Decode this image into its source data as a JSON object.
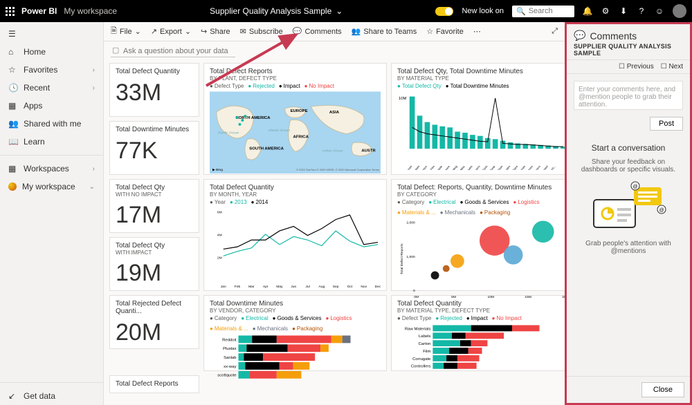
{
  "topbar": {
    "brand": "Power BI",
    "workspace": "My workspace",
    "title": "Supplier Quality Analysis Sample",
    "new_look_label": "New look on",
    "search_placeholder": "Search"
  },
  "leftrail": {
    "items": [
      {
        "icon": "home",
        "label": "Home"
      },
      {
        "icon": "star",
        "label": "Favorites",
        "chev": true
      },
      {
        "icon": "clock",
        "label": "Recent",
        "chev": true
      },
      {
        "icon": "apps",
        "label": "Apps"
      },
      {
        "icon": "share",
        "label": "Shared with me"
      },
      {
        "icon": "book",
        "label": "Learn"
      }
    ],
    "workspaces_label": "Workspaces",
    "myws_label": "My workspace",
    "getdata_label": "Get data"
  },
  "toolbar": {
    "file_label": "File",
    "export_label": "Export",
    "share_label": "Share",
    "subscribe_label": "Subscribe",
    "comments_label": "Comments",
    "teams_label": "Share to Teams",
    "favorite_label": "Favorite"
  },
  "ask": {
    "placeholder": "Ask a question about your data"
  },
  "kpis": [
    {
      "title": "Total Defect Quantity",
      "value": "33M"
    },
    {
      "title": "Total Downtime Minutes",
      "value": "77K"
    },
    {
      "title": "Total Defect Qty",
      "sub": "WITH NO IMPACT",
      "value": "17M"
    },
    {
      "title": "Total Defect Qty",
      "sub": "WITH IMPACT",
      "value": "19M"
    },
    {
      "title": "Total Rejected Defect Quanti...",
      "value": "20M"
    },
    {
      "title": "Total Defect Reports",
      "value": ""
    }
  ],
  "map_tile": {
    "title": "Total Defect Reports",
    "sub": "BY PLANT, DEFECT TYPE",
    "legend_items": [
      "Rejected",
      "Impact",
      "No Impact"
    ],
    "legend_colors": [
      "#14b8a6",
      "#000000",
      "#ef4444"
    ],
    "labels": [
      "NORTH AMERICA",
      "EUROPE",
      "ASIA",
      "SOUTH AMERICA",
      "AFRICA",
      "AUSTR"
    ],
    "ocean_labels": [
      "Pacific Ocean",
      "Atlantic Ocean",
      "Indian Ocean"
    ],
    "attrib": "Bing   © 2020 TomTom © 2020 HERE, © 2020 Microsoft Corporation Terms"
  },
  "barline_tile": {
    "title": "Total Defect Qty, Total Downtime Minutes",
    "sub": "BY MATERIAL TYPE",
    "legend": [
      "Total Defect Qty",
      "Total Downtime Minutes"
    ],
    "legend_colors": [
      "#14b8a6",
      "#000000"
    ],
    "ymax": 10,
    "ylabel": "10M",
    "bars": [
      9.8,
      6.2,
      5.0,
      4.5,
      4.2,
      4.0,
      3.2,
      3.0,
      2.6,
      2.4,
      2.0,
      1.8,
      1.5,
      1.2,
      1.0,
      0.9,
      0.8,
      0.7,
      0.6,
      0.5,
      0.4
    ],
    "line": [
      4.0,
      3.2,
      2.8,
      2.6,
      2.4,
      2.2,
      2.0,
      1.8,
      1.6,
      1.4,
      1.3,
      9.5,
      1.0,
      0.9,
      0.8,
      0.8,
      0.7,
      0.6,
      0.5,
      0.4,
      0.4
    ],
    "cats": [
      "Raw Materials",
      "Labels",
      "Carton",
      "Film",
      "Corrugate",
      "Hardware",
      "Molding",
      "Misc",
      "Electrolytes",
      "Connectors",
      "Computer Parts",
      "Mechanical Pump",
      "Glass",
      "Crates",
      "Dyes",
      "Packing Materials",
      "Batteries",
      "Glaziers",
      "Crystal",
      "Print Materials Print...",
      ""
    ],
    "bar_color": "#14b8a6"
  },
  "line_tile": {
    "title": "Total Defect Quantity",
    "sub": "BY MONTH, YEAR",
    "legend": [
      "2013",
      "2014"
    ],
    "legend_colors": [
      "#14b8a6",
      "#000000"
    ],
    "months": [
      "Jan",
      "Feb",
      "Mar",
      "Apr",
      "May",
      "Jun",
      "Jul",
      "Aug",
      "Sep",
      "Oct",
      "Nov",
      "Dec"
    ],
    "ymax": 6,
    "yticks": [
      "6M",
      "4M",
      "2M"
    ],
    "s1": [
      2.0,
      2.4,
      2.7,
      3.9,
      3.0,
      3.7,
      3.4,
      2.9,
      4.2,
      3.3,
      2.8,
      3.0
    ],
    "s2": [
      2.6,
      2.8,
      3.4,
      3.4,
      4.2,
      4.6,
      3.8,
      4.4,
      5.2,
      5.6,
      3.0,
      3.2
    ]
  },
  "scatter_tile": {
    "title": "Total Defect: Reports, Quantity, Downtime Minutes",
    "sub": "BY CATEGORY",
    "legend": [
      "Electrical",
      "Goods & Services",
      "Logistics",
      "Materials & ...",
      "Mechanicals",
      "Packaging"
    ],
    "legend_colors": [
      "#14b8a6",
      "#000000",
      "#ef4444",
      "#f59e0b",
      "#6b7280",
      "#b45309"
    ],
    "xmax": 20,
    "xticks": [
      "0M",
      "5M",
      "10M",
      "15M",
      "20M"
    ],
    "ymax": 2000,
    "yticks": [
      "2,000",
      "1,000",
      "0"
    ],
    "points": [
      {
        "x": 2.5,
        "y": 400,
        "r": 6,
        "c": "#000000"
      },
      {
        "x": 4.0,
        "y": 600,
        "r": 5,
        "c": "#b45309"
      },
      {
        "x": 5.5,
        "y": 820,
        "r": 10,
        "c": "#f59e0b"
      },
      {
        "x": 10.5,
        "y": 1420,
        "r": 22,
        "c": "#ef4444"
      },
      {
        "x": 13.0,
        "y": 1000,
        "r": 14,
        "c": "#5aa9d6"
      },
      {
        "x": 17.0,
        "y": 1680,
        "r": 16,
        "c": "#14b8a6"
      }
    ]
  },
  "hbar_tile": {
    "title": "Total Downtime Minutes",
    "sub": "BY VENDOR, CATEGORY",
    "legend": [
      "Electrical",
      "Goods & Services",
      "Logistics",
      "Materials & ...",
      "Mechanicals",
      "Packaging"
    ],
    "legend_colors": [
      "#14b8a6",
      "#000000",
      "#ef4444",
      "#f59e0b",
      "#6b7280",
      "#b45309"
    ],
    "rows": [
      {
        "label": "Reddoit",
        "segs": [
          {
            "c": "#14b8a6",
            "v": 10
          },
          {
            "c": "#000000",
            "v": 18
          },
          {
            "c": "#ef4444",
            "v": 40
          },
          {
            "c": "#f59e0b",
            "v": 8
          },
          {
            "c": "#6b7280",
            "v": 6
          }
        ]
      },
      {
        "label": "Plustax",
        "segs": [
          {
            "c": "#14b8a6",
            "v": 6
          },
          {
            "c": "#000000",
            "v": 30
          },
          {
            "c": "#ef4444",
            "v": 24
          },
          {
            "c": "#f59e0b",
            "v": 6
          }
        ]
      },
      {
        "label": "Sanlab",
        "segs": [
          {
            "c": "#14b8a6",
            "v": 4
          },
          {
            "c": "#000000",
            "v": 14
          },
          {
            "c": "#ef4444",
            "v": 38
          }
        ]
      },
      {
        "label": "xx-way",
        "segs": [
          {
            "c": "#14b8a6",
            "v": 5
          },
          {
            "c": "#000000",
            "v": 25
          },
          {
            "c": "#ef4444",
            "v": 10
          },
          {
            "c": "#f59e0b",
            "v": 12
          }
        ]
      },
      {
        "label": "scottquote",
        "segs": [
          {
            "c": "#14b8a6",
            "v": 8
          },
          {
            "c": "#ef4444",
            "v": 20
          },
          {
            "c": "#f59e0b",
            "v": 18
          }
        ]
      }
    ]
  },
  "hbar2_tile": {
    "title": "Total Defect Quantity",
    "sub": "BY MATERIAL TYPE, DEFECT TYPE",
    "legend": [
      "Rejected",
      "Impact",
      "No Impact"
    ],
    "legend_colors": [
      "#14b8a6",
      "#000000",
      "#ef4444"
    ],
    "rows": [
      {
        "label": "Raw Materials",
        "segs": [
          {
            "c": "#14b8a6",
            "v": 28
          },
          {
            "c": "#000000",
            "v": 30
          },
          {
            "c": "#ef4444",
            "v": 20
          }
        ]
      },
      {
        "label": "Labels",
        "segs": [
          {
            "c": "#14b8a6",
            "v": 14
          },
          {
            "c": "#000000",
            "v": 10
          },
          {
            "c": "#ef4444",
            "v": 28
          }
        ]
      },
      {
        "label": "Carton",
        "segs": [
          {
            "c": "#14b8a6",
            "v": 20
          },
          {
            "c": "#000000",
            "v": 8
          },
          {
            "c": "#ef4444",
            "v": 12
          }
        ]
      },
      {
        "label": "Film",
        "segs": [
          {
            "c": "#14b8a6",
            "v": 12
          },
          {
            "c": "#000000",
            "v": 14
          },
          {
            "c": "#ef4444",
            "v": 10
          }
        ]
      },
      {
        "label": "Corrugate",
        "segs": [
          {
            "c": "#14b8a6",
            "v": 10
          },
          {
            "c": "#000000",
            "v": 8
          },
          {
            "c": "#ef4444",
            "v": 16
          }
        ]
      },
      {
        "label": "Controllers",
        "segs": [
          {
            "c": "#14b8a6",
            "v": 8
          },
          {
            "c": "#000000",
            "v": 10
          },
          {
            "c": "#ef4444",
            "v": 14
          }
        ]
      }
    ]
  },
  "comments": {
    "title": "Comments",
    "subtitle": "SUPPLIER QUALITY ANALYSIS SAMPLE",
    "prev": "Previous",
    "next": "Next",
    "placeholder": "Enter your comments here, and @mention people to grab their attention.",
    "post": "Post",
    "conv_title": "Start a conversation",
    "conv_sub": "Share your feedback on dashboards or specific visuals.",
    "mention_hint": "Grab people's attention with @mentions",
    "close": "Close"
  }
}
